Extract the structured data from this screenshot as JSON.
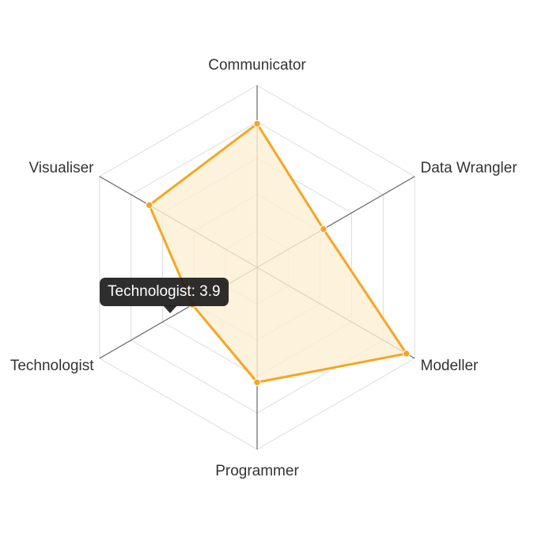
{
  "chart_data": {
    "type": "radar",
    "axes": [
      "Communicator",
      "Data Wrangler",
      "Modeller",
      "Programmer",
      "Technologist",
      "Visualiser"
    ],
    "series": [
      {
        "values": [
          7.5,
          4.0,
          9.0,
          6.0,
          3.9,
          6.5
        ]
      }
    ],
    "rmax": 9.5,
    "rings": 5,
    "colors": {
      "line": "#F5A623",
      "fill": "#FDEFD3",
      "axis": "#666666",
      "grid": "#DDDDDD"
    },
    "tooltip": {
      "text": "Technologist: 3.9"
    }
  }
}
